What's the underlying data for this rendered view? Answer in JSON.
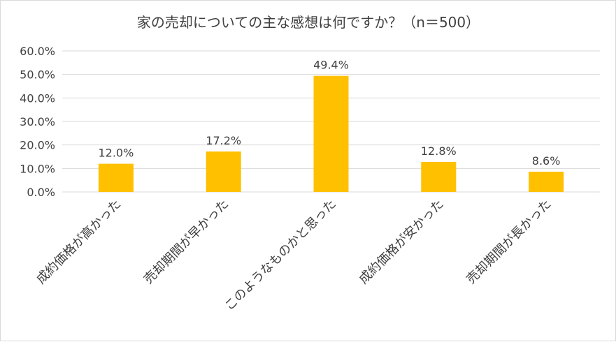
{
  "chart_data": {
    "type": "bar",
    "title": "家の売却についての主な感想は何ですか？（n＝500）",
    "categories": [
      "成約価格が高かった",
      "売却期間が早かった",
      "このようなものかと思った",
      "成約価格が安かった",
      "売却期間が長かった"
    ],
    "values": [
      12.0,
      17.2,
      49.4,
      12.8,
      8.6
    ],
    "data_labels": [
      "12.0%",
      "17.2%",
      "49.4%",
      "12.8%",
      "8.6%"
    ],
    "y_ticks": [
      0,
      10,
      20,
      30,
      40,
      50,
      60
    ],
    "y_tick_labels": [
      "0.0%",
      "10.0%",
      "20.0%",
      "30.0%",
      "40.0%",
      "50.0%",
      "60.0%"
    ],
    "ylim": [
      0,
      60
    ],
    "xlabel": "",
    "ylabel": "",
    "gridlines": true,
    "bar_color": "#FFC000"
  }
}
